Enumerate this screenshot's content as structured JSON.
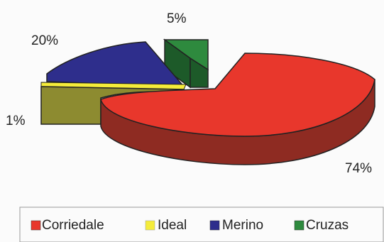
{
  "chart_data": {
    "type": "pie",
    "categories": [
      "Corriedale",
      "Ideal",
      "Merino",
      "Cruzas"
    ],
    "values": [
      74,
      1,
      20,
      5
    ],
    "value_labels": [
      "74%",
      "1%",
      "20%",
      "5%"
    ],
    "colors": [
      "#e8372c",
      "#f5ec3a",
      "#2e2e8c",
      "#2e8a3e"
    ],
    "exploded": true,
    "three_d": true,
    "legend_position": "bottom",
    "title": "",
    "legend": [
      "Corriedale",
      "Ideal",
      "Merino",
      "Cruzas"
    ]
  }
}
